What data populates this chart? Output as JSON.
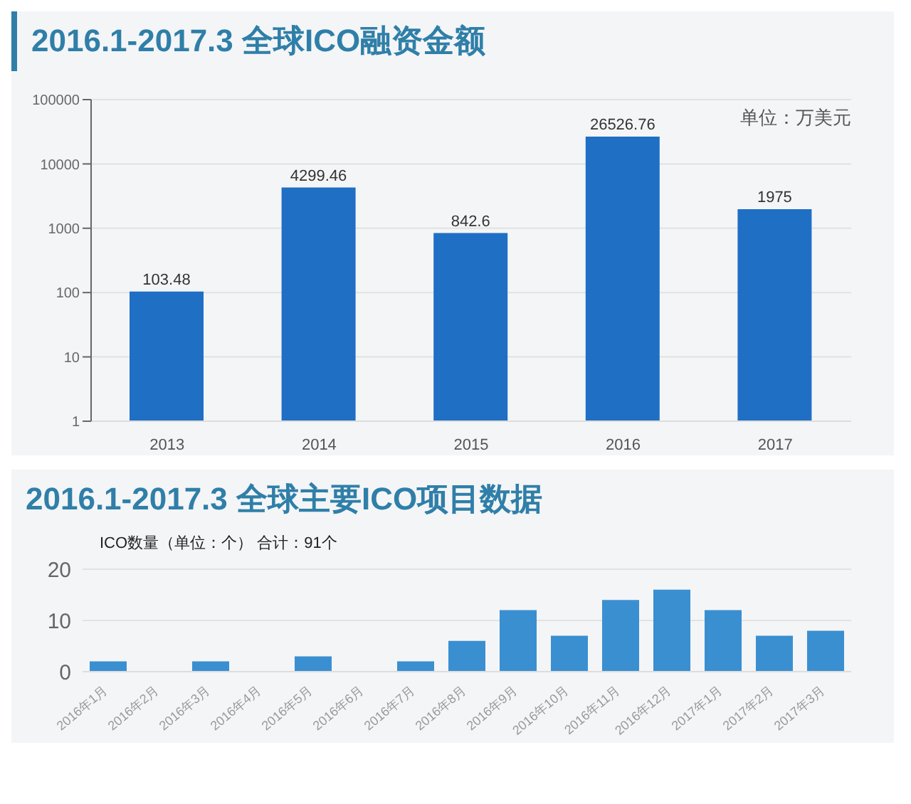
{
  "chart_data": [
    {
      "type": "bar",
      "title": "2016.1-2017.3 全球ICO融资金额",
      "categories": [
        "2013",
        "2014",
        "2015",
        "2016",
        "2017"
      ],
      "values": [
        103.48,
        4299.46,
        842.6,
        26526.76,
        1975
      ],
      "color": "#1f6fc5",
      "log": true,
      "ylim": [
        1,
        100000
      ],
      "yticks": [
        1,
        10,
        100,
        1000,
        10000,
        100000
      ],
      "grid": "y",
      "data_labels": true,
      "annotations": [
        "单位：万美元"
      ]
    },
    {
      "type": "bar",
      "title": "2016.1-2017.3 全球主要ICO项目数据",
      "categories": [
        "2016年1月",
        "2016年2月",
        "2016年3月",
        "2016年4月",
        "2016年5月",
        "2016年6月",
        "2016年7月",
        "2016年8月",
        "2016年9月",
        "2016年10月",
        "2016年11月",
        "2016年12月",
        "2017年1月",
        "2017年2月",
        "2017年3月"
      ],
      "values": [
        2,
        0,
        2,
        0,
        3,
        0,
        2,
        6,
        12,
        7,
        14,
        16,
        12,
        7,
        8
      ],
      "color": "#3a8fd0",
      "ylim": [
        0,
        20
      ],
      "yticks": [
        0,
        10,
        20
      ],
      "grid": "y",
      "annotations": [
        "ICO数量（单位：个） 合计：91个"
      ]
    }
  ]
}
